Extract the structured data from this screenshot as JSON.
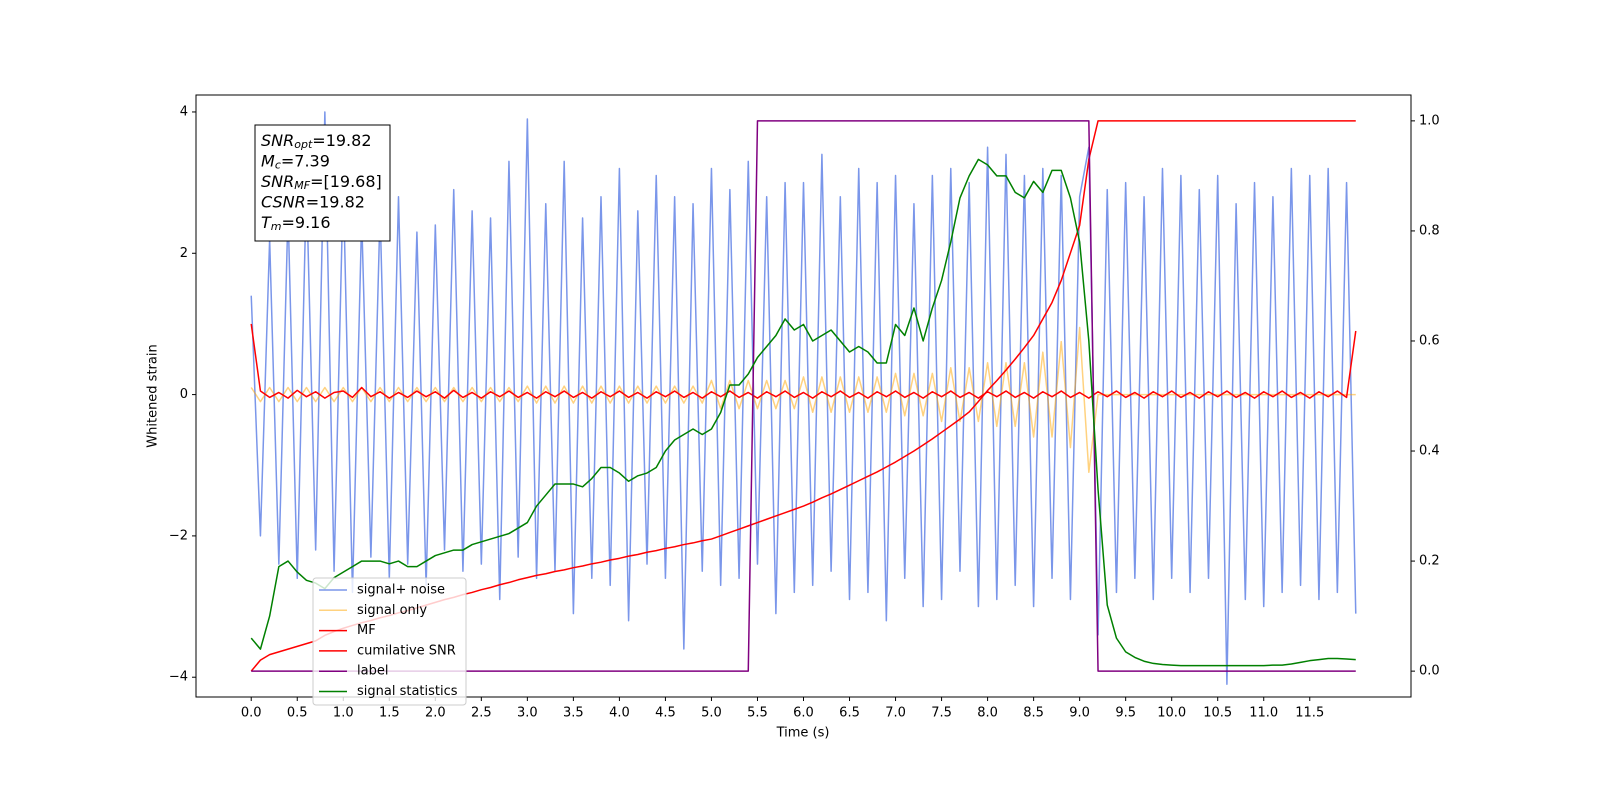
{
  "chart_data": {
    "type": "line",
    "xlabel": "Time (s)",
    "ylabel": "Whitened strain",
    "xlim": [
      -0.6,
      12.6
    ],
    "ylim": [
      -4.28,
      4.24
    ],
    "y2lim": [
      -0.047,
      1.047
    ],
    "xticks": [
      {
        "value": 0,
        "label": "0.0"
      },
      0.5,
      {
        "value": 1,
        "label": "1.0"
      },
      1.5,
      {
        "value": 2,
        "label": "2.0"
      },
      2.5,
      {
        "value": 3,
        "label": "3.0"
      },
      3.5,
      {
        "value": 4,
        "label": "4.0"
      },
      4.5,
      {
        "value": 5,
        "label": "5.0"
      },
      5.5,
      {
        "value": 6,
        "label": "6.0"
      },
      6.5,
      {
        "value": 7,
        "label": "7.0"
      },
      7.5,
      {
        "value": 8,
        "label": "8.0"
      },
      8.5,
      {
        "value": 9,
        "label": "9.0"
      },
      9.5,
      {
        "value": 10,
        "label": "10.0"
      },
      10.5,
      {
        "value": 11,
        "label": "11.0"
      },
      11.5
    ],
    "yticks": [
      {
        "value": -4,
        "label": "−4"
      },
      {
        "value": -2,
        "label": "−2"
      },
      0,
      2,
      4
    ],
    "y2ticks": [
      {
        "value": 0,
        "label": "0.0"
      },
      0.2,
      0.4,
      0.6,
      0.8,
      {
        "value": 1,
        "label": "1.0"
      }
    ],
    "legend": "lower left",
    "annotation": [
      {
        "name": "SNR",
        "sub": "opt",
        "text": "=19.82"
      },
      {
        "name": "M",
        "sub": "c",
        "text": "=7.39"
      },
      {
        "name": "SNR",
        "sub": "MF",
        "text": "=[19.68]"
      },
      {
        "name": "CSNR",
        "sub": "",
        "text": "=19.82"
      },
      {
        "name": "T",
        "sub": "m",
        "text": "=9.16"
      }
    ],
    "x": [
      0,
      0.1,
      0.2,
      0.3,
      0.4,
      0.5,
      0.6,
      0.7,
      0.8,
      0.9,
      1,
      1.1,
      1.2,
      1.3,
      1.4,
      1.5,
      1.6,
      1.7,
      1.8,
      1.9,
      2,
      2.1,
      2.2,
      2.3,
      2.4,
      2.5,
      2.6,
      2.7,
      2.8,
      2.9,
      3,
      3.1,
      3.2,
      3.3,
      3.4,
      3.5,
      3.6,
      3.7,
      3.8,
      3.9,
      4,
      4.1,
      4.2,
      4.3,
      4.4,
      4.5,
      4.6,
      4.7,
      4.8,
      4.9,
      5,
      5.1,
      5.2,
      5.3,
      5.4,
      5.5,
      5.6,
      5.7,
      5.8,
      5.9,
      6,
      6.1,
      6.2,
      6.3,
      6.4,
      6.5,
      6.6,
      6.7,
      6.8,
      6.9,
      7,
      7.1,
      7.2,
      7.3,
      7.4,
      7.5,
      7.6,
      7.7,
      7.8,
      7.9,
      8,
      8.1,
      8.2,
      8.3,
      8.4,
      8.5,
      8.6,
      8.7,
      8.8,
      8.9,
      9,
      9.1,
      9.2,
      9.3,
      9.4,
      9.5,
      9.6,
      9.7,
      9.8,
      9.9,
      10,
      10.1,
      10.2,
      10.3,
      10.4,
      10.5,
      10.6,
      10.7,
      10.8,
      10.9,
      11,
      11.1,
      11.2,
      11.3,
      11.4,
      11.5,
      11.6,
      11.7,
      11.8,
      11.9,
      12
    ],
    "series": [
      {
        "name": "signal+ noise",
        "color": "#4169e1",
        "alpha": 0.7,
        "values": [
          1.4,
          -2.0,
          2.2,
          -2.4,
          2.6,
          -2.6,
          3.0,
          -2.2,
          4.0,
          -2.5,
          3.0,
          -2.8,
          2.5,
          -2.3,
          2.6,
          -2.6,
          2.8,
          -2.4,
          2.3,
          -2.7,
          2.4,
          -2.2,
          2.9,
          -2.5,
          2.6,
          -2.4,
          2.5,
          -2.9,
          3.3,
          -2.3,
          3.9,
          -2.6,
          2.7,
          -2.5,
          3.3,
          -3.1,
          2.5,
          -2.6,
          2.8,
          -2.7,
          3.2,
          -3.2,
          2.6,
          -2.4,
          3.1,
          -2.6,
          2.8,
          -3.6,
          2.7,
          -2.5,
          3.2,
          -2.7,
          2.9,
          -2.6,
          3.3,
          -2.4,
          2.8,
          -3.1,
          3.0,
          -2.8,
          3.0,
          -2.7,
          3.4,
          -2.5,
          2.8,
          -2.9,
          3.2,
          -2.8,
          3.0,
          -3.2,
          3.1,
          -2.6,
          2.7,
          -3.0,
          3.1,
          -2.9,
          3.2,
          -2.5,
          3.0,
          -3.0,
          3.5,
          -2.9,
          3.4,
          -2.7,
          3.1,
          -3.0,
          3.2,
          -2.6,
          3.1,
          -2.9,
          2.8,
          3.5,
          -3.4,
          2.9,
          -2.8,
          3.0,
          -2.6,
          2.8,
          -2.9,
          3.2,
          -2.6,
          3.1,
          -2.8,
          2.9,
          -2.6,
          3.1,
          -4.1,
          2.7,
          -2.9,
          3.0,
          -3.0,
          2.8,
          -2.8,
          3.2,
          -2.7,
          3.1,
          -2.9,
          3.2,
          -2.8,
          3.0,
          -3.1
        ]
      },
      {
        "name": "signal only",
        "color": "#ffa500",
        "alpha": 0.5,
        "values": [
          0.1,
          -0.1,
          0.1,
          -0.1,
          0.1,
          -0.1,
          0.1,
          -0.1,
          0.1,
          -0.1,
          0.1,
          -0.1,
          0.1,
          -0.1,
          0.1,
          -0.1,
          0.1,
          -0.1,
          0.1,
          -0.1,
          0.1,
          -0.1,
          0.1,
          -0.1,
          0.1,
          -0.1,
          0.1,
          -0.1,
          0.1,
          -0.1,
          0.12,
          -0.12,
          0.12,
          -0.12,
          0.12,
          -0.12,
          0.12,
          -0.12,
          0.12,
          -0.12,
          0.12,
          -0.12,
          0.12,
          -0.12,
          0.12,
          -0.12,
          0.12,
          -0.12,
          0.12,
          -0.12,
          0.2,
          -0.2,
          0.2,
          -0.2,
          0.2,
          -0.2,
          0.2,
          -0.2,
          0.2,
          -0.2,
          0.25,
          -0.25,
          0.25,
          -0.25,
          0.25,
          -0.25,
          0.25,
          -0.25,
          0.25,
          -0.25,
          0.3,
          -0.3,
          0.3,
          -0.3,
          0.3,
          -0.38,
          0.38,
          -0.38,
          0.38,
          -0.38,
          0.45,
          -0.45,
          0.45,
          -0.45,
          0.45,
          -0.6,
          0.6,
          -0.6,
          0.75,
          -0.75,
          0.95,
          -1.1,
          0,
          0,
          0,
          0,
          0,
          0,
          0,
          0,
          0,
          0,
          0,
          0,
          0,
          0,
          0,
          0,
          0,
          0,
          0,
          0,
          0,
          0,
          0,
          0,
          0,
          0,
          0,
          0,
          0
        ]
      },
      {
        "name": "MF",
        "color": "#ff0000",
        "alpha": 1,
        "values": [
          1.0,
          0.05,
          -0.04,
          0.03,
          -0.05,
          0.06,
          -0.03,
          0.04,
          -0.05,
          0.03,
          0.05,
          -0.04,
          0.1,
          -0.03,
          0.04,
          -0.05,
          0.03,
          -0.04,
          0.05,
          -0.03,
          0.04,
          -0.05,
          0.06,
          -0.04,
          0.03,
          -0.05,
          0.04,
          -0.03,
          0.05,
          -0.04,
          0.03,
          -0.05,
          0.04,
          -0.03,
          0.05,
          -0.04,
          0.03,
          -0.05,
          0.04,
          -0.03,
          0.05,
          -0.04,
          0.03,
          -0.05,
          0.04,
          -0.03,
          0.05,
          -0.04,
          0.03,
          -0.05,
          0.04,
          -0.03,
          0.05,
          -0.04,
          0.03,
          -0.05,
          0.04,
          -0.03,
          0.05,
          -0.04,
          0.03,
          -0.05,
          0.04,
          -0.03,
          0.05,
          -0.04,
          0.03,
          -0.05,
          0.04,
          -0.03,
          0.05,
          -0.04,
          0.03,
          -0.05,
          0.04,
          -0.03,
          0.05,
          -0.04,
          0.03,
          -0.05,
          0.04,
          -0.03,
          0.05,
          -0.04,
          0.03,
          -0.05,
          0.04,
          -0.03,
          0.05,
          -0.04,
          0.03,
          -0.05,
          0.04,
          -0.03,
          0.05,
          -0.04,
          0.03,
          -0.05,
          0.04,
          -0.03,
          0.05,
          -0.04,
          0.03,
          -0.05,
          0.04,
          -0.03,
          0.05,
          -0.04,
          0.03,
          -0.05,
          0.04,
          -0.03,
          0.05,
          -0.04,
          0.03,
          -0.05,
          0.04,
          -0.03,
          0.05,
          -0.04,
          0.9
        ]
      },
      {
        "name": "cumilative SNR",
        "color": "#ff0000",
        "alpha": 1,
        "axis": "y2",
        "values": [
          0,
          0.02,
          0.03,
          0.035,
          0.04,
          0.045,
          0.05,
          0.055,
          0.065,
          0.072,
          0.078,
          0.083,
          0.088,
          0.092,
          0.097,
          0.101,
          0.106,
          0.11,
          0.115,
          0.12,
          0.125,
          0.13,
          0.134,
          0.139,
          0.143,
          0.148,
          0.152,
          0.157,
          0.161,
          0.166,
          0.17,
          0.174,
          0.177,
          0.181,
          0.184,
          0.188,
          0.191,
          0.195,
          0.198,
          0.202,
          0.205,
          0.209,
          0.212,
          0.216,
          0.219,
          0.223,
          0.226,
          0.23,
          0.233,
          0.237,
          0.24,
          0.246,
          0.252,
          0.258,
          0.264,
          0.27,
          0.276,
          0.282,
          0.288,
          0.294,
          0.3,
          0.307,
          0.315,
          0.322,
          0.33,
          0.338,
          0.346,
          0.354,
          0.362,
          0.371,
          0.38,
          0.39,
          0.4,
          0.411,
          0.422,
          0.434,
          0.446,
          0.458,
          0.471,
          0.49,
          0.51,
          0.528,
          0.547,
          0.567,
          0.588,
          0.61,
          0.64,
          0.67,
          0.71,
          0.76,
          0.81,
          0.93,
          1,
          1,
          1,
          1,
          1,
          1,
          1,
          1,
          1,
          1,
          1,
          1,
          1,
          1,
          1,
          1,
          1,
          1,
          1,
          1,
          1,
          1,
          1,
          1,
          1,
          1,
          1,
          1,
          1
        ]
      },
      {
        "name": "label",
        "color": "#800080",
        "alpha": 1,
        "axis": "y2",
        "values": [
          0,
          0,
          0,
          0,
          0,
          0,
          0,
          0,
          0,
          0,
          0,
          0,
          0,
          0,
          0,
          0,
          0,
          0,
          0,
          0,
          0,
          0,
          0,
          0,
          0,
          0,
          0,
          0,
          0,
          0,
          0,
          0,
          0,
          0,
          0,
          0,
          0,
          0,
          0,
          0,
          0,
          0,
          0,
          0,
          0,
          0,
          0,
          0,
          0,
          0,
          0,
          0,
          0,
          0,
          0,
          1,
          1,
          1,
          1,
          1,
          1,
          1,
          1,
          1,
          1,
          1,
          1,
          1,
          1,
          1,
          1,
          1,
          1,
          1,
          1,
          1,
          1,
          1,
          1,
          1,
          1,
          1,
          1,
          1,
          1,
          1,
          1,
          1,
          1,
          1,
          1,
          1,
          0,
          0,
          0,
          0,
          0,
          0,
          0,
          0,
          0,
          0,
          0,
          0,
          0,
          0,
          0,
          0,
          0,
          0,
          0,
          0,
          0,
          0,
          0,
          0,
          0,
          0,
          0,
          0,
          0
        ]
      },
      {
        "name": "signal statistics",
        "color": "#008000",
        "alpha": 1,
        "axis": "y2",
        "values": [
          0.06,
          0.04,
          0.1,
          0.19,
          0.2,
          0.18,
          0.165,
          0.16,
          0.15,
          0.17,
          0.18,
          0.19,
          0.2,
          0.2,
          0.2,
          0.195,
          0.2,
          0.19,
          0.19,
          0.2,
          0.21,
          0.215,
          0.22,
          0.22,
          0.23,
          0.235,
          0.24,
          0.245,
          0.25,
          0.26,
          0.27,
          0.3,
          0.32,
          0.34,
          0.34,
          0.34,
          0.335,
          0.35,
          0.37,
          0.37,
          0.36,
          0.345,
          0.355,
          0.36,
          0.37,
          0.4,
          0.42,
          0.43,
          0.44,
          0.43,
          0.44,
          0.47,
          0.52,
          0.52,
          0.54,
          0.57,
          0.59,
          0.61,
          0.64,
          0.62,
          0.63,
          0.6,
          0.61,
          0.62,
          0.6,
          0.58,
          0.59,
          0.58,
          0.56,
          0.56,
          0.63,
          0.61,
          0.66,
          0.6,
          0.66,
          0.71,
          0.78,
          0.86,
          0.9,
          0.93,
          0.92,
          0.9,
          0.9,
          0.87,
          0.86,
          0.89,
          0.87,
          0.91,
          0.91,
          0.86,
          0.78,
          0.6,
          0.33,
          0.12,
          0.06,
          0.035,
          0.025,
          0.018,
          0.014,
          0.012,
          0.011,
          0.01,
          0.01,
          0.01,
          0.01,
          0.01,
          0.01,
          0.01,
          0.01,
          0.01,
          0.01,
          0.011,
          0.011,
          0.013,
          0.016,
          0.019,
          0.021,
          0.023,
          0.023,
          0.022,
          0.021
        ]
      }
    ]
  }
}
